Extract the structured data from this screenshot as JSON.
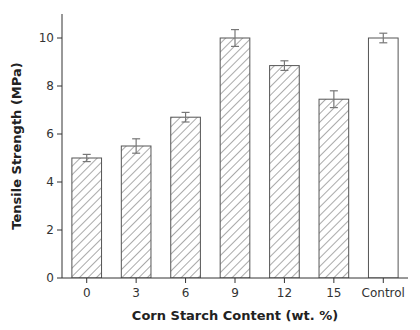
{
  "chart_data": {
    "type": "bar",
    "categories": [
      "0",
      "3",
      "6",
      "9",
      "12",
      "15",
      "Control"
    ],
    "values": [
      5.0,
      5.5,
      6.7,
      10.0,
      8.85,
      7.45,
      10.0
    ],
    "errors": [
      0.15,
      0.3,
      0.2,
      0.35,
      0.2,
      0.35,
      0.2
    ],
    "xlabel": "Corn Starch Content (wt. %)",
    "ylabel": "Tensile Strength (MPa)",
    "ylim": [
      0,
      11
    ],
    "yticks": [
      0,
      2,
      4,
      6,
      8,
      10
    ],
    "color": "#555555",
    "grid": false
  }
}
